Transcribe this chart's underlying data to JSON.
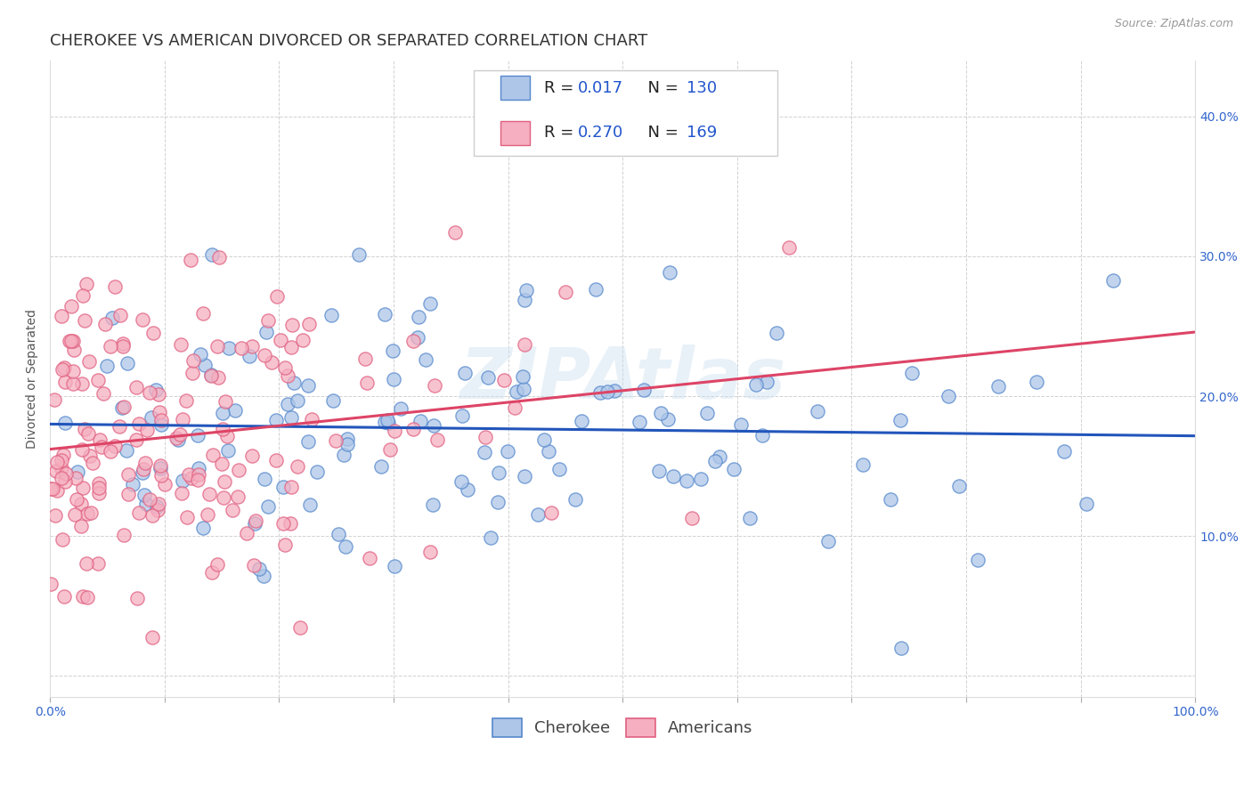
{
  "title": "CHEROKEE VS AMERICAN DIVORCED OR SEPARATED CORRELATION CHART",
  "source": "Source: ZipAtlas.com",
  "ylabel": "Divorced or Separated",
  "xlim": [
    0,
    1.0
  ],
  "ylim": [
    -0.015,
    0.44
  ],
  "x_ticks": [
    0.0,
    0.1,
    0.2,
    0.3,
    0.4,
    0.5,
    0.6,
    0.7,
    0.8,
    0.9,
    1.0
  ],
  "x_tick_labels": [
    "0.0%",
    "",
    "",
    "",
    "",
    "",
    "",
    "",
    "",
    "",
    "100.0%"
  ],
  "y_ticks": [
    0.0,
    0.1,
    0.2,
    0.3,
    0.4
  ],
  "y_tick_labels": [
    "",
    "10.0%",
    "20.0%",
    "30.0%",
    "40.0%"
  ],
  "cherokee_color": "#aec6e8",
  "american_color": "#f5afc0",
  "cherokee_edge_color": "#5588cc",
  "american_edge_color": "#e06080",
  "cherokee_line_color": "#2255bb",
  "american_line_color": "#dd4466",
  "legend_label1": "Cherokee",
  "legend_label2": "Americans",
  "watermark": "ZIPAtlas",
  "title_fontsize": 13,
  "axis_label_fontsize": 10,
  "tick_fontsize": 10,
  "legend_fontsize": 12,
  "source_fontsize": 9,
  "cherokee_N": 130,
  "american_N": 169,
  "cherokee_R": 0.017,
  "american_R": 0.27
}
